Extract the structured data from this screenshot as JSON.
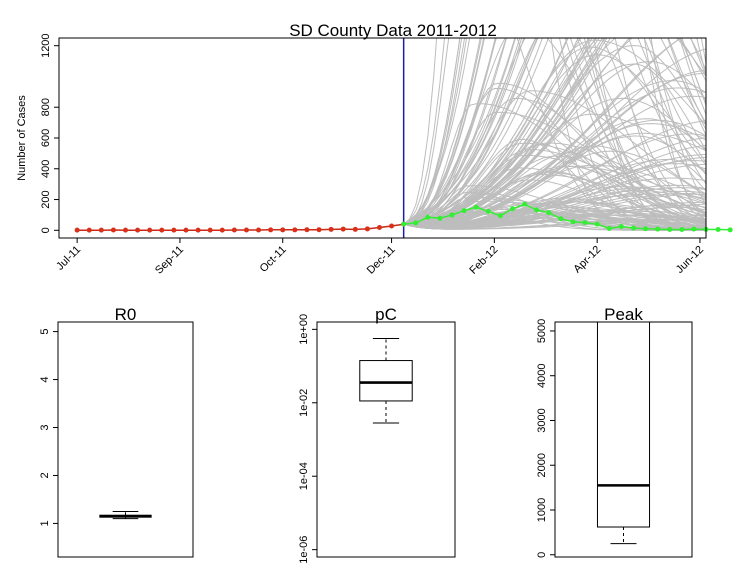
{
  "chart_data": [
    {
      "type": "line",
      "title": "SD County Data 2011-2012",
      "ylabel": "Number of Cases",
      "xlabel": "",
      "ylim": [
        -50,
        1250
      ],
      "xlim": [
        -1.5,
        52
      ],
      "y_ticks": [
        0,
        200,
        400,
        600,
        800,
        1200
      ],
      "x_ticks": [
        {
          "label": "Jul-11",
          "week": 0
        },
        {
          "label": "Sep-11",
          "week": 8.5
        },
        {
          "label": "Oct-11",
          "week": 17
        },
        {
          "label": "Dec-11",
          "week": 26
        },
        {
          "label": "Feb-12",
          "week": 34.5
        },
        {
          "label": "Apr-12",
          "week": 43
        },
        {
          "label": "Jun-12",
          "week": 51.5
        }
      ],
      "cutoff_week": 27,
      "colors": {
        "observed": "#d9301a",
        "observed_line": "#cc2a16",
        "future": "#33ee33",
        "future_line": "#33ee33",
        "projection": "#bdbdbd",
        "cutoff": "#1c1caa"
      },
      "series": [
        {
          "x": [
            0,
            1,
            2,
            3,
            4,
            5,
            6,
            7,
            8,
            9,
            10,
            11,
            12,
            13,
            14,
            15,
            16,
            17,
            18,
            19,
            20,
            21,
            22,
            23,
            24,
            25,
            26,
            27
          ],
          "values": [
            1,
            1,
            1,
            2,
            1,
            1,
            1,
            1,
            1,
            1,
            1,
            1,
            1,
            2,
            2,
            2,
            3,
            3,
            3,
            4,
            4,
            6,
            8,
            6,
            9,
            18,
            28,
            40
          ]
        },
        {
          "x": [
            27,
            28,
            29,
            30,
            31,
            32,
            33,
            34,
            35,
            36,
            37,
            38,
            39,
            40,
            41,
            42,
            43,
            44,
            45,
            46,
            47,
            48,
            49,
            50,
            51,
            52,
            53,
            54
          ],
          "values": [
            40,
            48,
            85,
            78,
            100,
            128,
            150,
            122,
            95,
            140,
            170,
            132,
            115,
            75,
            55,
            50,
            40,
            12,
            25,
            15,
            10,
            8,
            5,
            5,
            8,
            6,
            5,
            3
          ]
        }
      ],
      "projections": {
        "count": 160,
        "start_week": 27,
        "end_week": 53,
        "peak_week_range": [
          32,
          54
        ],
        "peak_value_range": [
          60,
          5000
        ]
      }
    },
    {
      "type": "box",
      "title": "R0",
      "ylim": [
        0.3,
        5.2
      ],
      "y_ticks": [
        "1",
        "2",
        "3",
        "4",
        "5"
      ],
      "y_tick_values": [
        1,
        2,
        3,
        4,
        5
      ],
      "box": {
        "min": 1.1,
        "q1": 1.13,
        "median": 1.15,
        "q3": 1.17,
        "max": 1.25
      }
    },
    {
      "type": "box",
      "title": "pC",
      "scale": "log",
      "ylim": [
        -6.2,
        0.2
      ],
      "y_ticks": [
        "1e-06",
        "1e-04",
        "1e-02",
        "1e+00"
      ],
      "y_tick_values": [
        -6,
        -4,
        -2,
        0
      ],
      "box": {
        "min": -2.55,
        "q1": -1.95,
        "median": -1.45,
        "q3": -0.85,
        "max": -0.25
      }
    },
    {
      "type": "box",
      "title": "Peak",
      "ylim": [
        -50,
        5200
      ],
      "y_ticks": [
        "0",
        "1000",
        "2000",
        "3000",
        "4000",
        "5000"
      ],
      "y_tick_values": [
        0,
        1000,
        2000,
        3000,
        4000,
        5000
      ],
      "box": {
        "min": 250,
        "q1": 620,
        "median": 1550,
        "q3": 5200,
        "max": 5200
      }
    }
  ]
}
